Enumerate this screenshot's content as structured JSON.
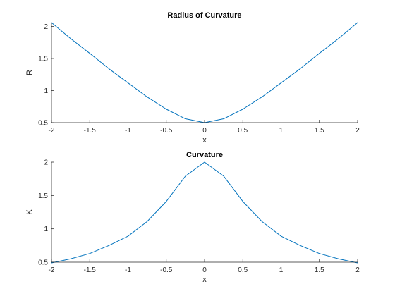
{
  "chart_data": [
    {
      "type": "line",
      "title": "Radius of Curvature",
      "xlabel": "x",
      "ylabel": "R",
      "xlim": [
        -2,
        2
      ],
      "ylim": [
        0.5,
        2.06
      ],
      "xticks": [
        "-2",
        "-1.5",
        "-1",
        "-0.5",
        "0",
        "0.5",
        "1",
        "1.5",
        "2"
      ],
      "yticks": [
        "0.5",
        "1",
        "1.5",
        "2"
      ],
      "grid": false,
      "color": "#0072BD",
      "x": [
        -2.0,
        -1.75,
        -1.5,
        -1.25,
        -1.0,
        -0.75,
        -0.5,
        -0.25,
        0.0,
        0.25,
        0.5,
        0.75,
        1.0,
        1.25,
        1.5,
        1.75,
        2.0
      ],
      "y": [
        2.06,
        1.81,
        1.58,
        1.34,
        1.12,
        0.9,
        0.71,
        0.56,
        0.5,
        0.56,
        0.71,
        0.9,
        1.12,
        1.34,
        1.58,
        1.81,
        2.06
      ]
    },
    {
      "type": "line",
      "title": "Curvature",
      "xlabel": "x",
      "ylabel": "K",
      "xlim": [
        -2,
        2
      ],
      "ylim": [
        0.5,
        2
      ],
      "xticks": [
        "-2",
        "-1.5",
        "-1",
        "-0.5",
        "0",
        "0.5",
        "1",
        "1.5",
        "2"
      ],
      "yticks": [
        "0.5",
        "1",
        "1.5",
        "2"
      ],
      "grid": false,
      "color": "#0072BD",
      "x": [
        -2.0,
        -1.75,
        -1.5,
        -1.25,
        -1.0,
        -0.75,
        -0.5,
        -0.25,
        0.0,
        0.25,
        0.5,
        0.75,
        1.0,
        1.25,
        1.5,
        1.75,
        2.0
      ],
      "y": [
        0.49,
        0.55,
        0.63,
        0.75,
        0.89,
        1.11,
        1.41,
        1.79,
        2.0,
        1.79,
        1.41,
        1.11,
        0.89,
        0.75,
        0.63,
        0.55,
        0.49
      ]
    }
  ]
}
